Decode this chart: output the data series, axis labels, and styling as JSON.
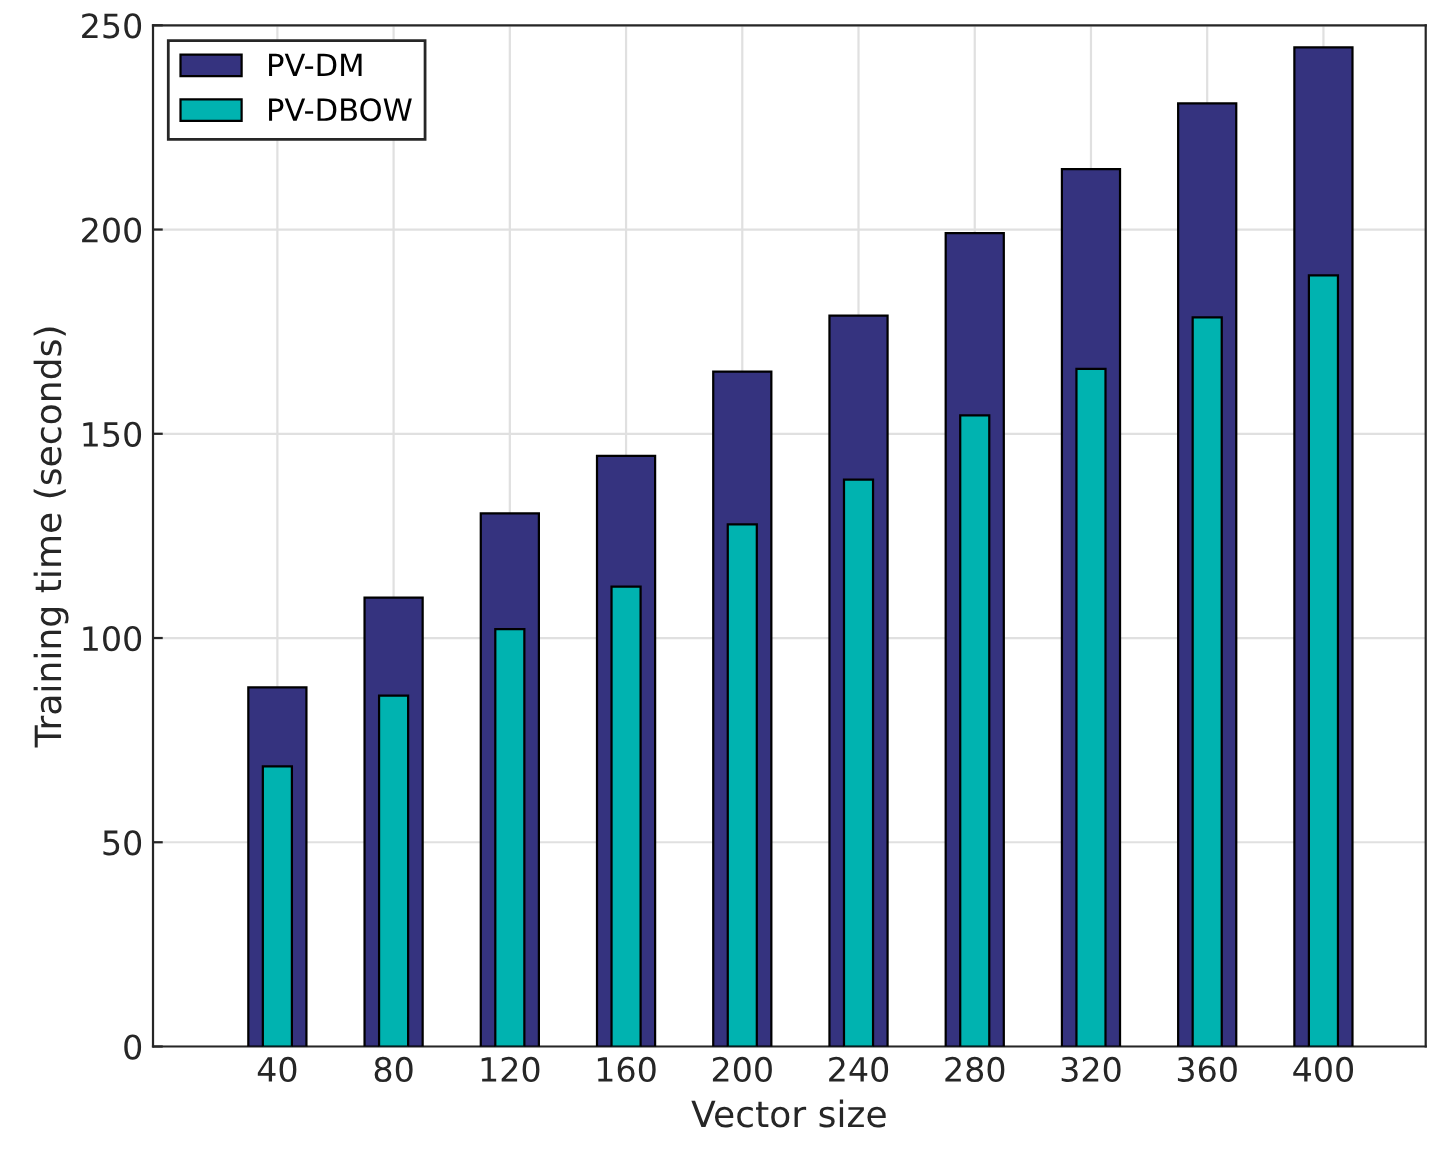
{
  "chart_data": {
    "type": "bar",
    "xlabel": "Vector size",
    "ylabel": "Training time (seconds)",
    "categories": [
      "40",
      "80",
      "120",
      "160",
      "200",
      "240",
      "280",
      "320",
      "360",
      "400"
    ],
    "series": [
      {
        "name": "PV-DM",
        "color": "#35337f",
        "values": [
          87.9,
          109.9,
          130.5,
          144.6,
          165.2,
          178.9,
          199.1,
          214.8,
          230.9,
          244.6
        ]
      },
      {
        "name": "PV-DBOW",
        "color": "#00b3b0",
        "values": [
          68.6,
          85.9,
          102.2,
          112.6,
          127.8,
          138.8,
          154.5,
          165.9,
          178.5,
          188.8
        ]
      }
    ],
    "ylim": [
      0,
      250
    ],
    "yticks": [
      0,
      50,
      100,
      150,
      200,
      250
    ],
    "grid": true,
    "legend": "top left"
  }
}
